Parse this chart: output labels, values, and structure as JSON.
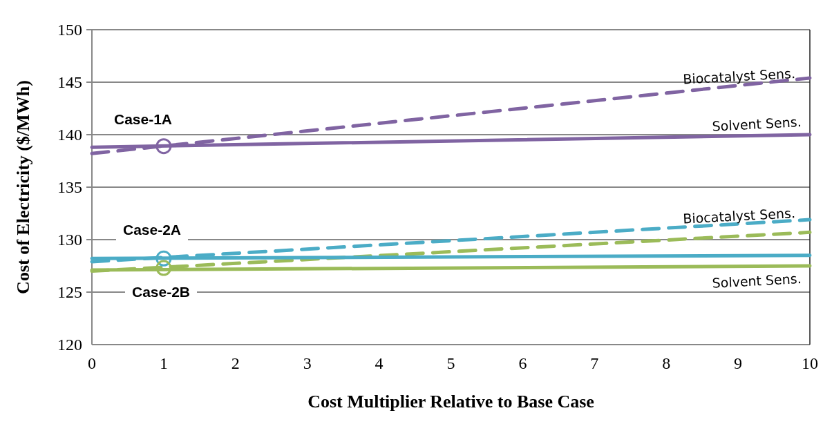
{
  "chart_data": {
    "type": "line",
    "xlabel": "Cost Multiplier Relative to Base Case",
    "ylabel": "Cost of Electricity ($/MWh)",
    "xlim": [
      0,
      10
    ],
    "xticks": [
      0,
      1,
      2,
      3,
      4,
      5,
      6,
      7,
      8,
      9,
      10
    ],
    "ylim": [
      120,
      150
    ],
    "yticks": [
      120,
      125,
      130,
      135,
      140,
      145,
      150
    ],
    "grid": "y",
    "series": [
      {
        "color": "#8064a2",
        "line_style": "dashed",
        "marker": "none",
        "x": [
          0,
          10
        ],
        "values": [
          138.2,
          145.4
        ]
      },
      {
        "color": "#8064a2",
        "line_style": "solid",
        "marker": "none",
        "x": [
          0,
          10
        ],
        "values": [
          138.8,
          140.0
        ]
      },
      {
        "color": "#4bacc6",
        "line_style": "dashed",
        "marker": "none",
        "x": [
          0,
          10
        ],
        "values": [
          127.9,
          131.9
        ]
      },
      {
        "color": "#9bbb59",
        "line_style": "dashed",
        "marker": "none",
        "x": [
          0,
          10
        ],
        "values": [
          127.0,
          130.7
        ]
      },
      {
        "color": "#4bacc6",
        "line_style": "solid",
        "marker": "none",
        "x": [
          0,
          10
        ],
        "values": [
          128.2,
          128.5
        ]
      },
      {
        "color": "#9bbb59",
        "line_style": "solid",
        "marker": "none",
        "x": [
          0,
          10
        ],
        "values": [
          127.1,
          127.5
        ]
      },
      {
        "type": "scatter",
        "color": "#8064a2",
        "marker": "circle",
        "x": [
          1
        ],
        "values": [
          138.9
        ]
      },
      {
        "type": "scatter",
        "color": "#4bacc6",
        "marker": "circle",
        "x": [
          1
        ],
        "values": [
          128.2
        ]
      },
      {
        "type": "scatter",
        "color": "#9bbb59",
        "marker": "circle",
        "x": [
          1
        ],
        "values": [
          127.3
        ]
      }
    ],
    "annotations": [
      {
        "text": "Biocatalyst Sens.",
        "x": 9.8,
        "y": 145.4
      },
      "Solvent Sens.",
      {
        "text": "Biocatalyst Sens.",
        "x": 9.8,
        "y": 132.1
      },
      "Solvent Sens.",
      "Case-1A",
      "Case-2A",
      "Case-2B"
    ]
  }
}
